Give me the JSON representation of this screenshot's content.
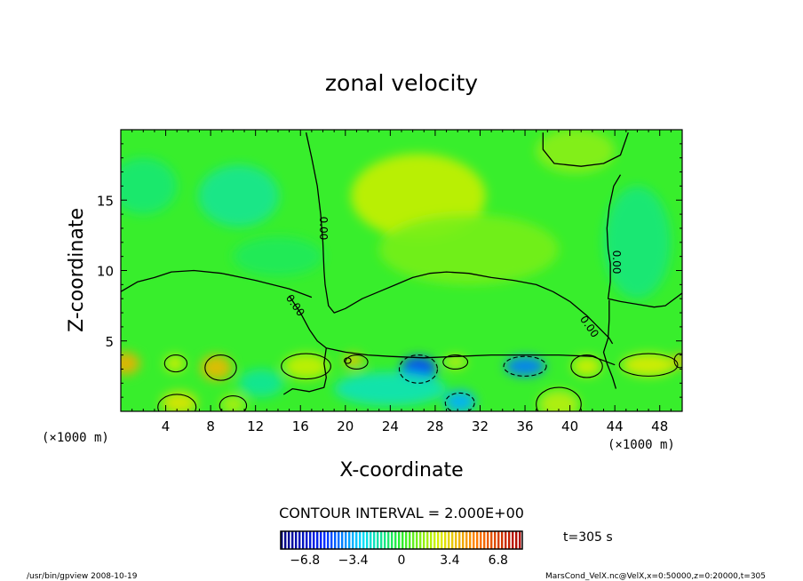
{
  "chart_data": {
    "type": "heatmap",
    "title": "zonal velocity",
    "xlabel": "X-coordinate",
    "ylabel": "Z-coordinate",
    "x_unit": "(×1000 m)",
    "y_unit": "(×1000 m)",
    "xlim": [
      0,
      50
    ],
    "ylim": [
      0,
      20
    ],
    "x_ticks": [
      4,
      8,
      12,
      16,
      20,
      24,
      28,
      32,
      36,
      40,
      44,
      48
    ],
    "y_ticks": [
      5,
      10,
      15
    ],
    "contour_interval_text": "CONTOUR INTERVAL = 2.000E+00",
    "contour_label": "0.00",
    "time_text": "t=305 s",
    "colorbar": {
      "min": -8.5,
      "max": 8.5,
      "ticks": [
        -6.8,
        -3.4,
        0,
        3.4,
        6.8
      ],
      "tick_labels": [
        "−6.8",
        "−3.4",
        "0",
        "3.4",
        "6.8"
      ]
    },
    "zero_contour_lines": [
      [
        [
          0,
          8.5
        ],
        [
          1.5,
          9.2
        ],
        [
          3,
          9.5
        ],
        [
          4.5,
          9.9
        ],
        [
          6.5,
          10.0
        ],
        [
          9,
          9.8
        ],
        [
          12,
          9.3
        ],
        [
          15,
          8.7
        ],
        [
          17,
          8.1
        ]
      ],
      [
        [
          16.5,
          19.8
        ],
        [
          17,
          18
        ],
        [
          17.5,
          16
        ],
        [
          17.8,
          14
        ],
        [
          18,
          12
        ],
        [
          18.1,
          10
        ],
        [
          18.2,
          9
        ],
        [
          18.5,
          7.5
        ],
        [
          19,
          7.0
        ],
        [
          20,
          7.3
        ],
        [
          21.5,
          8.0
        ],
        [
          23,
          8.5
        ],
        [
          24.5,
          9.0
        ],
        [
          26,
          9.5
        ],
        [
          27.5,
          9.8
        ],
        [
          29,
          9.9
        ],
        [
          31,
          9.8
        ],
        [
          33,
          9.5
        ],
        [
          35,
          9.3
        ],
        [
          37,
          9.0
        ],
        [
          38.5,
          8.5
        ],
        [
          40,
          7.8
        ]
      ],
      [
        [
          15,
          8.2
        ],
        [
          16,
          7.0
        ],
        [
          16.8,
          5.8
        ],
        [
          17.5,
          5.0
        ],
        [
          18.3,
          4.5
        ]
      ],
      [
        [
          40,
          7.8
        ],
        [
          41.5,
          6.8
        ],
        [
          42.5,
          6.0
        ],
        [
          43.5,
          5.2
        ],
        [
          43.8,
          4.8
        ]
      ],
      [
        [
          37.6,
          19.8
        ],
        [
          37.6,
          18.6
        ],
        [
          38.6,
          17.6
        ],
        [
          41,
          17.4
        ],
        [
          43,
          17.6
        ],
        [
          44.5,
          18.2
        ],
        [
          45.2,
          19.8
        ]
      ],
      [
        [
          44.5,
          16.8
        ],
        [
          43.9,
          16
        ],
        [
          43.5,
          14.5
        ],
        [
          43.3,
          13
        ],
        [
          43.4,
          11.5
        ],
        [
          43.6,
          10.5
        ],
        [
          43.6,
          9.2
        ],
        [
          43.4,
          8.0
        ],
        [
          44.5,
          7.8
        ],
        [
          46,
          7.6
        ],
        [
          47.5,
          7.4
        ],
        [
          48.5,
          7.5
        ],
        [
          50,
          8.4
        ]
      ],
      [
        [
          43.5,
          7.9
        ],
        [
          43.5,
          6.5
        ],
        [
          43.4,
          5.2
        ],
        [
          43,
          4.2
        ],
        [
          43.3,
          3.4
        ],
        [
          43.8,
          2.4
        ],
        [
          44.1,
          1.6
        ]
      ],
      [
        [
          18.3,
          4.5
        ],
        [
          20,
          4.2
        ],
        [
          22,
          4.0
        ],
        [
          24,
          3.9
        ],
        [
          27,
          3.8
        ],
        [
          30,
          3.9
        ],
        [
          33,
          4.0
        ],
        [
          36,
          4.0
        ],
        [
          39,
          4.0
        ],
        [
          42,
          3.9
        ],
        [
          44,
          3.3
        ]
      ],
      [
        [
          18.3,
          4.5
        ],
        [
          18.1,
          3.4
        ],
        [
          18.3,
          2.4
        ],
        [
          18.1,
          1.7
        ],
        [
          16.8,
          1.4
        ],
        [
          15.3,
          1.6
        ],
        [
          14.5,
          1.2
        ]
      ]
    ],
    "closed_contours": [
      {
        "cx": 4.9,
        "cy": 3.4,
        "rx": 1.0,
        "ry": 0.6,
        "style": "solid"
      },
      {
        "cx": 8.9,
        "cy": 3.1,
        "rx": 1.4,
        "ry": 0.9,
        "style": "solid"
      },
      {
        "cx": 16.5,
        "cy": 3.2,
        "rx": 2.2,
        "ry": 0.9,
        "style": "solid"
      },
      {
        "cx": 21.0,
        "cy": 3.5,
        "rx": 1.0,
        "ry": 0.5,
        "style": "solid"
      },
      {
        "cx": 20.2,
        "cy": 3.6,
        "rx": 0.3,
        "ry": 0.2,
        "style": "solid"
      },
      {
        "cx": 29.8,
        "cy": 3.5,
        "rx": 1.1,
        "ry": 0.5,
        "style": "solid"
      },
      {
        "cx": 26.5,
        "cy": 3.0,
        "rx": 1.7,
        "ry": 1.0,
        "style": "dashed"
      },
      {
        "cx": 36.0,
        "cy": 3.2,
        "rx": 1.9,
        "ry": 0.7,
        "style": "dashed"
      },
      {
        "cx": 30.2,
        "cy": 0.6,
        "rx": 1.3,
        "ry": 0.7,
        "style": "dashed"
      },
      {
        "cx": 47.0,
        "cy": 3.3,
        "rx": 2.6,
        "ry": 0.8,
        "style": "solid"
      },
      {
        "cx": 41.5,
        "cy": 3.2,
        "rx": 1.4,
        "ry": 0.8,
        "style": "solid"
      },
      {
        "cx": 5.0,
        "cy": 0.3,
        "rx": 1.7,
        "ry": 0.9,
        "style": "solid"
      },
      {
        "cx": 10.0,
        "cy": 0.4,
        "rx": 1.2,
        "ry": 0.7,
        "style": "solid"
      },
      {
        "cx": 39.0,
        "cy": 0.5,
        "rx": 2.0,
        "ry": 1.2,
        "style": "solid"
      },
      {
        "cx": 49.8,
        "cy": 3.6,
        "rx": 0.5,
        "ry": 0.5,
        "style": "solid"
      }
    ],
    "contour_label_positions": [
      {
        "x": 18.0,
        "y": 13.0,
        "angle": 90
      },
      {
        "x": 44.1,
        "y": 10.6,
        "angle": 90
      },
      {
        "x": 15.5,
        "y": 7.5,
        "angle": 55
      },
      {
        "x": 41.7,
        "y": 6.0,
        "angle": 55
      }
    ],
    "field_blobs": [
      {
        "cx": 10.5,
        "cy": 15.3,
        "sx": 3.6,
        "sy": 2.2,
        "v": -1.3
      },
      {
        "cx": 2.0,
        "cy": 16.0,
        "sx": 3.0,
        "sy": 2.0,
        "v": -0.9
      },
      {
        "cx": 26.5,
        "cy": 15.3,
        "sx": 6.0,
        "sy": 3.0,
        "v": 2.4
      },
      {
        "cx": 31.0,
        "cy": 11.5,
        "sx": 8.0,
        "sy": 2.5,
        "v": 1.2
      },
      {
        "cx": 40.5,
        "cy": 18.5,
        "sx": 3.5,
        "sy": 1.6,
        "v": 1.5
      },
      {
        "cx": 46.0,
        "cy": 12.0,
        "sx": 3.0,
        "sy": 4.0,
        "v": -1.0
      },
      {
        "cx": 14.0,
        "cy": 11.0,
        "sx": 4.0,
        "sy": 1.4,
        "v": -0.6
      },
      {
        "cx": 8.5,
        "cy": 3.1,
        "sx": 1.4,
        "sy": 0.9,
        "v": 4.0
      },
      {
        "cx": 0.4,
        "cy": 3.4,
        "sx": 1.3,
        "sy": 0.8,
        "v": 4.2
      },
      {
        "cx": 4.8,
        "cy": 3.4,
        "sx": 0.9,
        "sy": 0.6,
        "v": 2.6
      },
      {
        "cx": 5.2,
        "cy": 0.6,
        "sx": 1.6,
        "sy": 0.8,
        "v": 3.0
      },
      {
        "cx": 16.5,
        "cy": 3.2,
        "sx": 2.0,
        "sy": 0.9,
        "v": 2.4
      },
      {
        "cx": 20.7,
        "cy": 3.6,
        "sx": 0.9,
        "sy": 0.5,
        "v": 3.6
      },
      {
        "cx": 26.5,
        "cy": 3.0,
        "sx": 1.6,
        "sy": 0.9,
        "v": -5.0
      },
      {
        "cx": 36.0,
        "cy": 3.2,
        "sx": 1.8,
        "sy": 0.7,
        "v": -4.2
      },
      {
        "cx": 30.2,
        "cy": 0.7,
        "sx": 1.4,
        "sy": 0.8,
        "v": -3.4
      },
      {
        "cx": 24.0,
        "cy": 1.6,
        "sx": 5.0,
        "sy": 1.2,
        "v": -1.8
      },
      {
        "cx": 29.8,
        "cy": 3.5,
        "sx": 1.0,
        "sy": 0.5,
        "v": 2.2
      },
      {
        "cx": 41.5,
        "cy": 3.2,
        "sx": 1.3,
        "sy": 0.7,
        "v": 2.6
      },
      {
        "cx": 47.0,
        "cy": 3.3,
        "sx": 2.4,
        "sy": 0.8,
        "v": 2.8
      },
      {
        "cx": 49.8,
        "cy": 3.6,
        "sx": 0.6,
        "sy": 0.5,
        "v": 4.0
      },
      {
        "cx": 39.0,
        "cy": 0.5,
        "sx": 1.8,
        "sy": 1.0,
        "v": 2.2
      },
      {
        "cx": 10.0,
        "cy": 0.5,
        "sx": 1.1,
        "sy": 0.7,
        "v": 2.0
      },
      {
        "cx": 12.5,
        "cy": 2.0,
        "sx": 2.0,
        "sy": 1.0,
        "v": -1.4
      }
    ]
  },
  "footer": {
    "left": "/usr/bin/gpview   2008-10-19",
    "right": "MarsCond_VelX.nc@VelX,x=0:50000,z=0:20000,t=305"
  }
}
